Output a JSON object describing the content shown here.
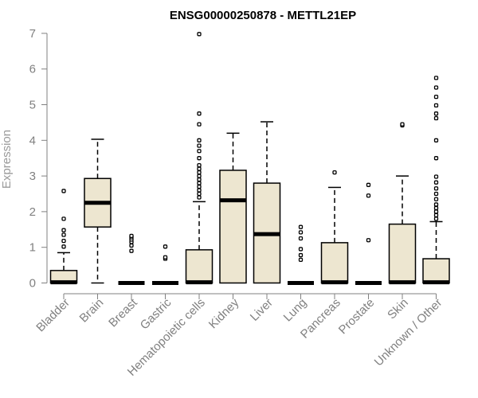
{
  "chart_data": {
    "type": "box",
    "title": "ENSG00000250878 - METTL21EP",
    "xlabel": "",
    "ylabel": "Expression",
    "ylim": [
      0,
      7
    ],
    "yticks": [
      0,
      1,
      2,
      3,
      4,
      5,
      6,
      7
    ],
    "grid": false,
    "legend": "none",
    "colors": {
      "box_fill": "#ede6d0",
      "box_stroke": "#000000",
      "axis": "#808080",
      "tick_label": "#808080",
      "ylabel": "#9a9a9a"
    },
    "categories": [
      "Bladder",
      "Brain",
      "Breast",
      "Gastric",
      "Hematopoietic cells",
      "Kidney",
      "Liver",
      "Lung",
      "Pancreas",
      "Prostate",
      "Skin",
      "Unknown / Other"
    ],
    "boxes": [
      {
        "category": "Bladder",
        "min": 0,
        "q1": 0,
        "median": 0.02,
        "q3": 0.35,
        "max": 0.85,
        "outliers": [
          1.02,
          1.18,
          1.35,
          1.48,
          1.8,
          2.58
        ]
      },
      {
        "category": "Brain",
        "min": 0,
        "q1": 1.57,
        "median": 2.25,
        "q3": 2.93,
        "max": 4.03,
        "outliers": []
      },
      {
        "category": "Breast",
        "min": 0,
        "q1": 0,
        "median": 0,
        "q3": 0,
        "max": 0,
        "outliers": [
          0.9,
          1.05,
          1.15,
          1.22,
          1.28,
          1.32
        ]
      },
      {
        "category": "Gastric",
        "min": 0,
        "q1": 0,
        "median": 0,
        "q3": 0,
        "max": 0,
        "outliers": [
          0.68,
          0.72,
          1.02
        ]
      },
      {
        "category": "Hematopoietic cells",
        "min": 0,
        "q1": 0,
        "median": 0.02,
        "q3": 0.93,
        "max": 2.28,
        "outliers": [
          2.4,
          2.5,
          2.6,
          2.7,
          2.8,
          2.9,
          3.0,
          3.1,
          3.2,
          3.3,
          3.5,
          3.7,
          3.85,
          4.0,
          4.45,
          4.75,
          6.98
        ]
      },
      {
        "category": "Kidney",
        "min": 0,
        "q1": 0,
        "median": 2.32,
        "q3": 3.16,
        "max": 4.2,
        "outliers": []
      },
      {
        "category": "Liver",
        "min": 0,
        "q1": 0,
        "median": 1.37,
        "q3": 2.8,
        "max": 4.52,
        "outliers": []
      },
      {
        "category": "Lung",
        "min": 0,
        "q1": 0,
        "median": 0,
        "q3": 0,
        "max": 0,
        "outliers": [
          0.65,
          0.78,
          0.95,
          1.25,
          1.42,
          1.57
        ]
      },
      {
        "category": "Pancreas",
        "min": 0,
        "q1": 0,
        "median": 0.02,
        "q3": 1.13,
        "max": 2.68,
        "outliers": [
          3.1
        ]
      },
      {
        "category": "Prostate",
        "min": 0,
        "q1": 0,
        "median": 0,
        "q3": 0,
        "max": 0,
        "outliers": [
          1.2,
          2.45,
          2.75
        ]
      },
      {
        "category": "Skin",
        "min": 0,
        "q1": 0,
        "median": 0.02,
        "q3": 1.65,
        "max": 3.0,
        "outliers": [
          4.42,
          4.45
        ]
      },
      {
        "category": "Unknown / Other",
        "min": 0,
        "q1": 0,
        "median": 0.02,
        "q3": 0.68,
        "max": 1.72,
        "outliers": [
          1.8,
          1.9,
          2.0,
          2.1,
          2.2,
          2.35,
          2.5,
          2.65,
          2.82,
          2.98,
          3.5,
          4.0,
          4.62,
          4.75,
          4.98,
          5.22,
          5.48,
          5.75
        ]
      }
    ]
  }
}
